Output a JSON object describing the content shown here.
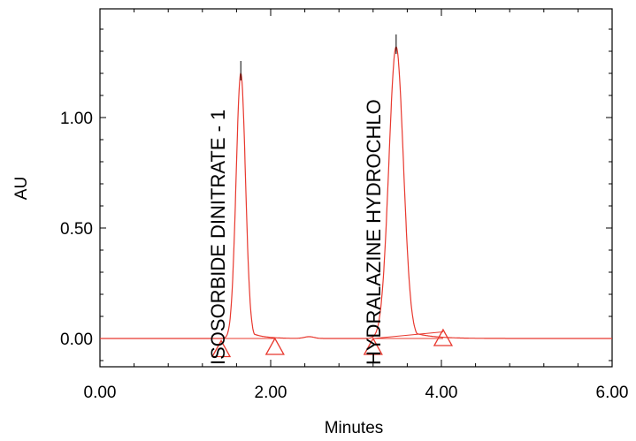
{
  "chart_data": {
    "type": "line",
    "xlabel": "Minutes",
    "ylabel": "AU",
    "xlim": [
      0.0,
      6.0
    ],
    "ylim": [
      -0.12,
      1.45
    ],
    "x_ticks": [
      0.0,
      2.0,
      4.0,
      6.0
    ],
    "x_tick_labels": [
      "0.00",
      "2.00",
      "4.00",
      "6.00"
    ],
    "x_minor_step": 0.4,
    "y_ticks": [
      0.0,
      0.5,
      1.0
    ],
    "y_tick_labels": [
      "0.00",
      "0.50",
      "1.00"
    ],
    "y_minor_step": 0.1,
    "grid": false,
    "colors": {
      "trace": "#e8382e",
      "frame": "#000000"
    },
    "peaks": [
      {
        "label": "ISOSORBIDE DINITRATE - 1",
        "retention_time": 1.65,
        "height": 1.2,
        "width": 0.055,
        "tail": 0.14
      },
      {
        "label": "HYDRALAZINE HYDROCHLO",
        "retention_time": 3.47,
        "height": 1.32,
        "width": 0.085,
        "tail": 0.22
      }
    ],
    "integration_markers": [
      {
        "x": 1.42,
        "y": -0.05
      },
      {
        "x": 2.05,
        "y": -0.04
      },
      {
        "x": 3.2,
        "y": -0.04
      },
      {
        "x": 4.02,
        "y": 0.0
      }
    ]
  }
}
